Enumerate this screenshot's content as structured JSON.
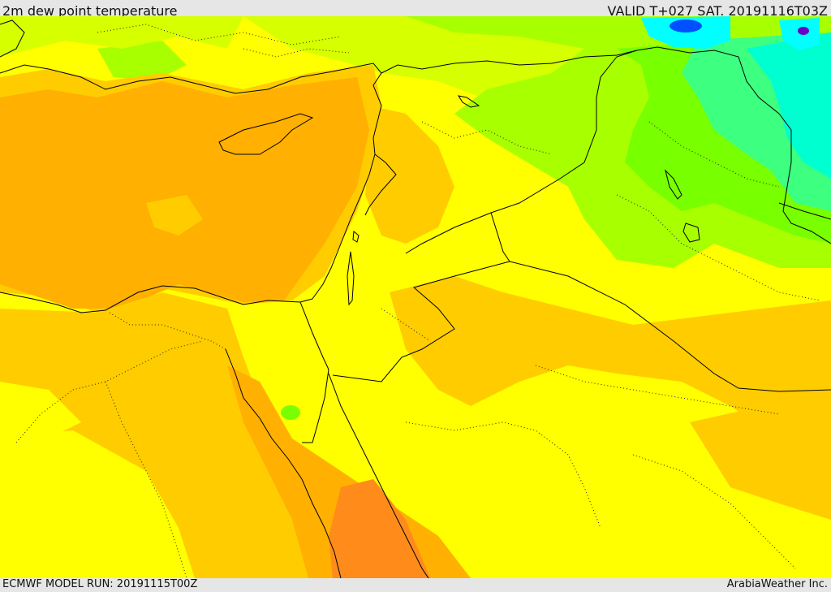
{
  "header": {
    "title": "2m dew point temperature",
    "valid": "VALID T+027 SAT. 20191116T03Z"
  },
  "footer": {
    "model_run": "ECMWF MODEL RUN: 20191115T00Z",
    "credit": "ArabiaWeather Inc."
  },
  "map": {
    "palette": {
      "deep_orange": "#ff8c1a",
      "orange": "#ffb000",
      "amber": "#ffcc00",
      "yellow_orange": "#ffe000",
      "yellow": "#ffff00",
      "yellow_green": "#d6ff00",
      "light_green": "#a8ff00",
      "green": "#78ff00",
      "mint": "#3dff80",
      "turquoise": "#00ffd0",
      "cyan": "#00ffff",
      "blue": "#0050ff",
      "purple": "#6a00c8"
    },
    "border_color": "#000000"
  }
}
